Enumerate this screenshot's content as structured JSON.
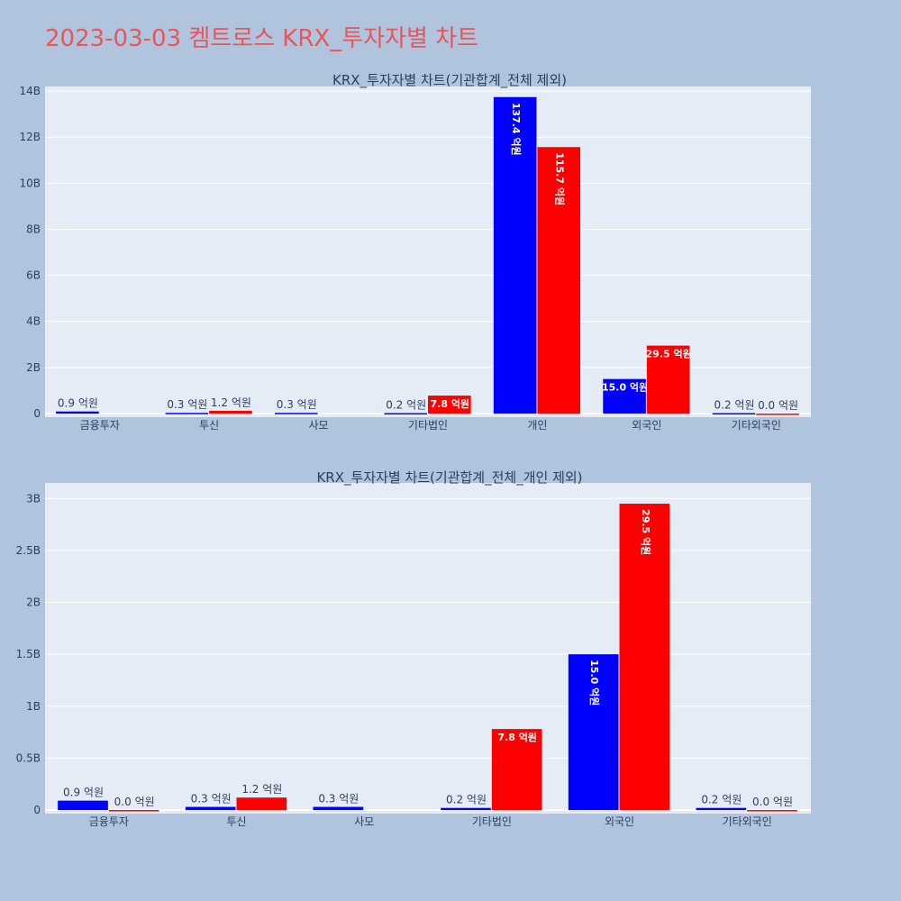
{
  "title": "2023-03-03 켐트로스 KRX_투자자별 차트",
  "colors": {
    "background": "#b0c4de",
    "plot_bg": "#e5ecf6",
    "title": "#e8555a",
    "buy": "#0000ff",
    "sell": "#ff0000"
  },
  "chart_data": [
    {
      "type": "bar",
      "title": "KRX_투자자별 차트(기관합계_전체 제외)",
      "categories": [
        "금융투자",
        "투신",
        "사모",
        "기타법인",
        "개인",
        "외국인",
        "기타외국인"
      ],
      "ylim": [
        0,
        14.2
      ],
      "yticks": [
        0,
        2,
        4,
        6,
        8,
        10,
        12,
        14
      ],
      "ytick_labels": [
        "0",
        "2B",
        "4B",
        "6B",
        "8B",
        "10B",
        "12B",
        "14B"
      ],
      "grid": true,
      "series": [
        {
          "color": "#0000ff",
          "values": [
            0.09,
            0.03,
            0.03,
            0.02,
            13.74,
            1.5,
            0.02
          ],
          "labels": [
            "0.9 억원",
            "0.3 억원",
            "0.3 억원",
            "0.2 억원",
            "137.4 억원",
            "15.0 억원",
            "0.2 억원"
          ]
        },
        {
          "color": "#ff0000",
          "values": [
            null,
            0.12,
            null,
            0.78,
            11.57,
            2.95,
            0.0
          ],
          "labels": [
            "",
            "1.2 억원",
            "",
            "7.8 억원",
            "115.7 억원",
            "29.5 억원",
            "0.0 억원"
          ]
        }
      ]
    },
    {
      "type": "bar",
      "title": "KRX_투자자별 차트(기관합계_전체_개인 제외)",
      "categories": [
        "금융투자",
        "투신",
        "사모",
        "기타법인",
        "외국인",
        "기타외국인"
      ],
      "ylim": [
        0,
        3.15
      ],
      "yticks": [
        0,
        0.5,
        1,
        1.5,
        2,
        2.5,
        3
      ],
      "ytick_labels": [
        "0",
        "0.5B",
        "1B",
        "1.5B",
        "2B",
        "2.5B",
        "3B"
      ],
      "grid": true,
      "series": [
        {
          "color": "#0000ff",
          "values": [
            0.09,
            0.03,
            0.03,
            0.02,
            1.5,
            0.02
          ],
          "labels": [
            "0.9 억원",
            "0.3 억원",
            "0.3 억원",
            "0.2 억원",
            "15.0 억원",
            "0.2 억원"
          ]
        },
        {
          "color": "#ff0000",
          "values": [
            0.0,
            0.12,
            null,
            0.78,
            2.95,
            0.0
          ],
          "labels": [
            "0.0 억원",
            "1.2 억원",
            "",
            "7.8 억원",
            "29.5 억원",
            "0.0 억원"
          ]
        }
      ]
    }
  ]
}
